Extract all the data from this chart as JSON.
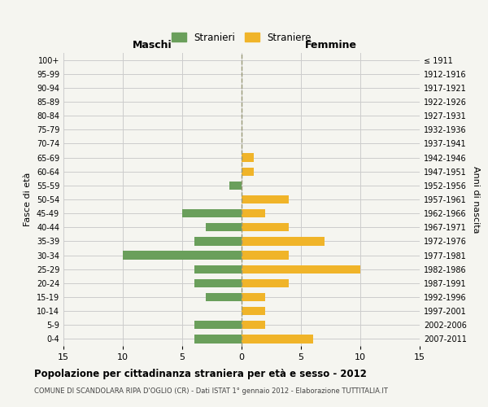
{
  "age_groups": [
    "100+",
    "95-99",
    "90-94",
    "85-89",
    "80-84",
    "75-79",
    "70-74",
    "65-69",
    "60-64",
    "55-59",
    "50-54",
    "45-49",
    "40-44",
    "35-39",
    "30-34",
    "25-29",
    "20-24",
    "15-19",
    "10-14",
    "5-9",
    "0-4"
  ],
  "birth_years": [
    "≤ 1911",
    "1912-1916",
    "1917-1921",
    "1922-1926",
    "1927-1931",
    "1932-1936",
    "1937-1941",
    "1942-1946",
    "1947-1951",
    "1952-1956",
    "1957-1961",
    "1962-1966",
    "1967-1971",
    "1972-1976",
    "1977-1981",
    "1982-1986",
    "1987-1991",
    "1992-1996",
    "1997-2001",
    "2002-2006",
    "2007-2011"
  ],
  "males": [
    0,
    0,
    0,
    0,
    0,
    0,
    0,
    0,
    0,
    1,
    0,
    5,
    3,
    4,
    10,
    4,
    4,
    3,
    0,
    4,
    4
  ],
  "females": [
    0,
    0,
    0,
    0,
    0,
    0,
    0,
    1,
    1,
    0,
    4,
    2,
    4,
    7,
    4,
    10,
    4,
    2,
    2,
    2,
    6
  ],
  "male_color": "#6a9f5b",
  "female_color": "#f0b429",
  "title": "Popolazione per cittadinanza straniera per età e sesso - 2012",
  "subtitle": "COMUNE DI SCANDOLARA RIPA D'OGLIO (CR) - Dati ISTAT 1° gennaio 2012 - Elaborazione TUTTITALIA.IT",
  "xlabel_left": "Maschi",
  "xlabel_right": "Femmine",
  "ylabel_left": "Fasce di età",
  "ylabel_right": "Anni di nascita",
  "legend_male": "Stranieri",
  "legend_female": "Straniere",
  "xlim": 15,
  "bg_color": "#f5f5f0",
  "grid_color": "#cccccc"
}
